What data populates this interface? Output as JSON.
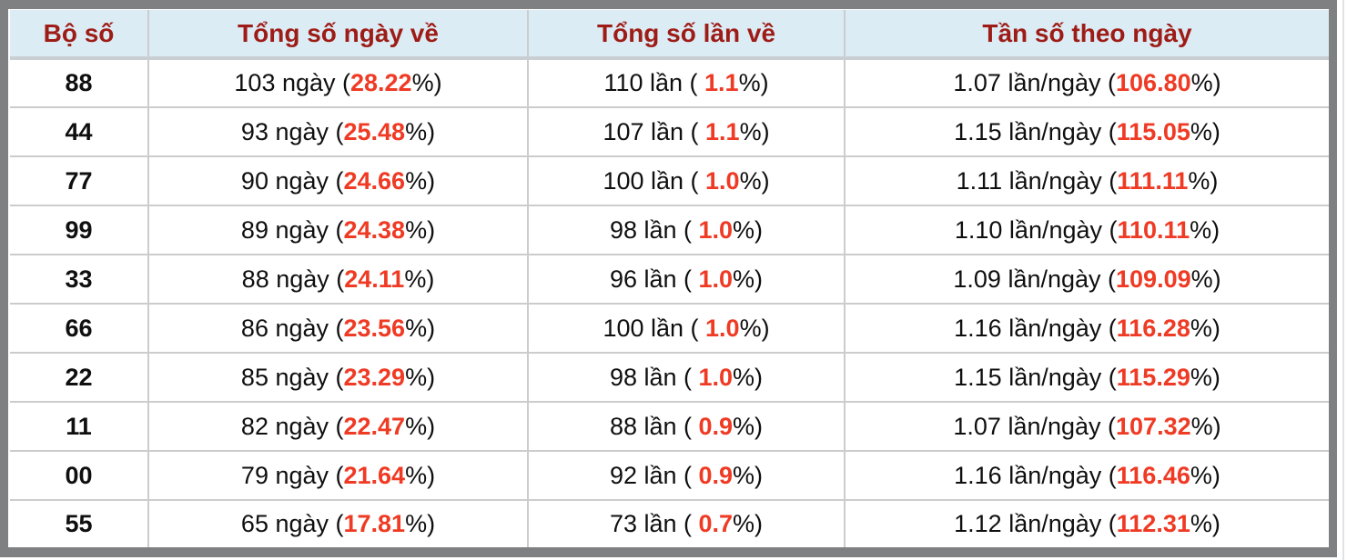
{
  "page": {
    "frame_color": "#7e8081",
    "edge_line_color": "#e2e2e2"
  },
  "table": {
    "header_bg": "#dcecf5",
    "header_text_color": "#9e1c16",
    "highlight_color": "#ef3a24",
    "border_color": "#cccccc",
    "columns": [
      {
        "key": "pair",
        "label": "Bộ số"
      },
      {
        "key": "days",
        "label": "Tổng số ngày về"
      },
      {
        "key": "times",
        "label": "Tổng số lần về"
      },
      {
        "key": "freq",
        "label": "Tần số theo ngày"
      }
    ],
    "rows": [
      {
        "pair": "88",
        "days": {
          "pre": "103 ngày (",
          "value": "28.22",
          "post": "%)"
        },
        "times": {
          "pre": "110 lần ( ",
          "value": "1.1",
          "post": "%)"
        },
        "freq": {
          "pre": "1.07 lần/ngày (",
          "value": "106.80",
          "post": "%)"
        }
      },
      {
        "pair": "44",
        "days": {
          "pre": "93 ngày (",
          "value": "25.48",
          "post": "%)"
        },
        "times": {
          "pre": "107 lần ( ",
          "value": "1.1",
          "post": "%)"
        },
        "freq": {
          "pre": "1.15 lần/ngày (",
          "value": "115.05",
          "post": "%)"
        }
      },
      {
        "pair": "77",
        "days": {
          "pre": "90 ngày (",
          "value": "24.66",
          "post": "%)"
        },
        "times": {
          "pre": "100 lần ( ",
          "value": "1.0",
          "post": "%)"
        },
        "freq": {
          "pre": "1.11 lần/ngày (",
          "value": "111.11",
          "post": "%)"
        }
      },
      {
        "pair": "99",
        "days": {
          "pre": "89 ngày (",
          "value": "24.38",
          "post": "%)"
        },
        "times": {
          "pre": "98 lần ( ",
          "value": "1.0",
          "post": "%)"
        },
        "freq": {
          "pre": "1.10 lần/ngày (",
          "value": "110.11",
          "post": "%)"
        }
      },
      {
        "pair": "33",
        "days": {
          "pre": "88 ngày (",
          "value": "24.11",
          "post": "%)"
        },
        "times": {
          "pre": "96 lần ( ",
          "value": "1.0",
          "post": "%)"
        },
        "freq": {
          "pre": "1.09 lần/ngày (",
          "value": "109.09",
          "post": "%)"
        }
      },
      {
        "pair": "66",
        "days": {
          "pre": "86 ngày (",
          "value": "23.56",
          "post": "%)"
        },
        "times": {
          "pre": "100 lần ( ",
          "value": "1.0",
          "post": "%)"
        },
        "freq": {
          "pre": "1.16 lần/ngày (",
          "value": "116.28",
          "post": "%)"
        }
      },
      {
        "pair": "22",
        "days": {
          "pre": "85 ngày (",
          "value": "23.29",
          "post": "%)"
        },
        "times": {
          "pre": "98 lần ( ",
          "value": "1.0",
          "post": "%)"
        },
        "freq": {
          "pre": "1.15 lần/ngày (",
          "value": "115.29",
          "post": "%)"
        }
      },
      {
        "pair": "11",
        "days": {
          "pre": "82 ngày (",
          "value": "22.47",
          "post": "%)"
        },
        "times": {
          "pre": "88 lần ( ",
          "value": "0.9",
          "post": "%)"
        },
        "freq": {
          "pre": "1.07 lần/ngày (",
          "value": "107.32",
          "post": "%)"
        }
      },
      {
        "pair": "00",
        "days": {
          "pre": "79 ngày (",
          "value": "21.64",
          "post": "%)"
        },
        "times": {
          "pre": "92 lần ( ",
          "value": "0.9",
          "post": "%)"
        },
        "freq": {
          "pre": "1.16 lần/ngày (",
          "value": "116.46",
          "post": "%)"
        }
      },
      {
        "pair": "55",
        "days": {
          "pre": "65 ngày (",
          "value": "17.81",
          "post": "%)"
        },
        "times": {
          "pre": "73 lần ( ",
          "value": "0.7",
          "post": "%)"
        },
        "freq": {
          "pre": "1.12 lần/ngày (",
          "value": "112.31",
          "post": "%)"
        }
      }
    ]
  }
}
